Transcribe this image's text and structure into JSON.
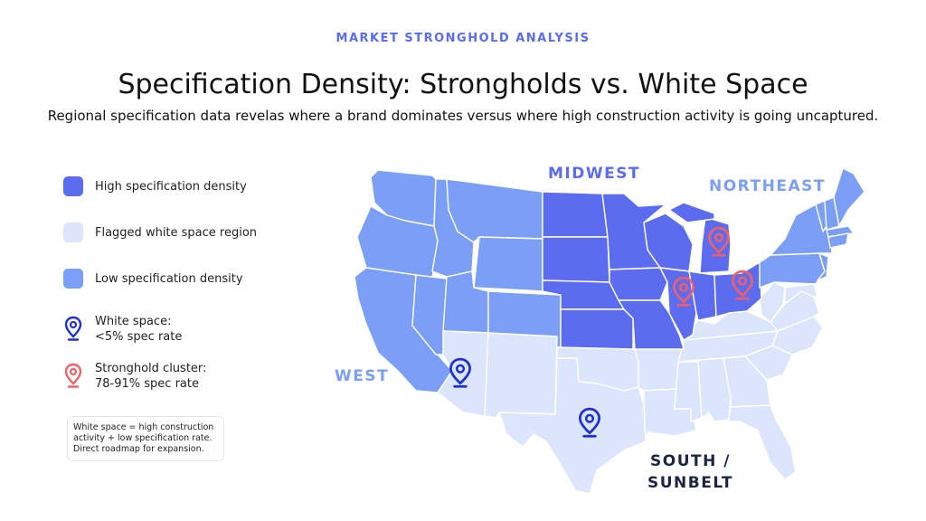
{
  "header": {
    "eyebrow": "MARKET STRONGHOLD ANALYSIS",
    "title": "Specification Density: Strongholds vs. White Space",
    "subtitle": "Regional specification data revelas where a brand dominates versus where high construction activity is going uncaptured."
  },
  "legend": {
    "high": "High specification density",
    "white_space": "Flagged white space region",
    "low": "Low specification density",
    "white_pin_title": "White space:",
    "white_pin_rate": "<5% spec rate",
    "stronghold_title": "Stronghold cluster:",
    "stronghold_rate": "78-91% spec rate"
  },
  "note": {
    "line1": "White space = high construction",
    "line2": "activity + low specification rate.",
    "line3": "Direct roadmap for expansion."
  },
  "regions": {
    "midwest": "MIDWEST",
    "northeast": "NORTHEAST",
    "west": "WEST",
    "south_line1": "SOUTH /",
    "south_line2": "SUNBELT"
  },
  "colors": {
    "high": "#5b6cf0",
    "white_space": "#dbe5fb",
    "low": "#7b9ef6",
    "white_pin": "#1f2fd6",
    "stronghold_pin": "#f0606a",
    "label_dark": "#1c2541",
    "label_accent": "#5b6cf0",
    "label_light": "#7b9ef6"
  }
}
